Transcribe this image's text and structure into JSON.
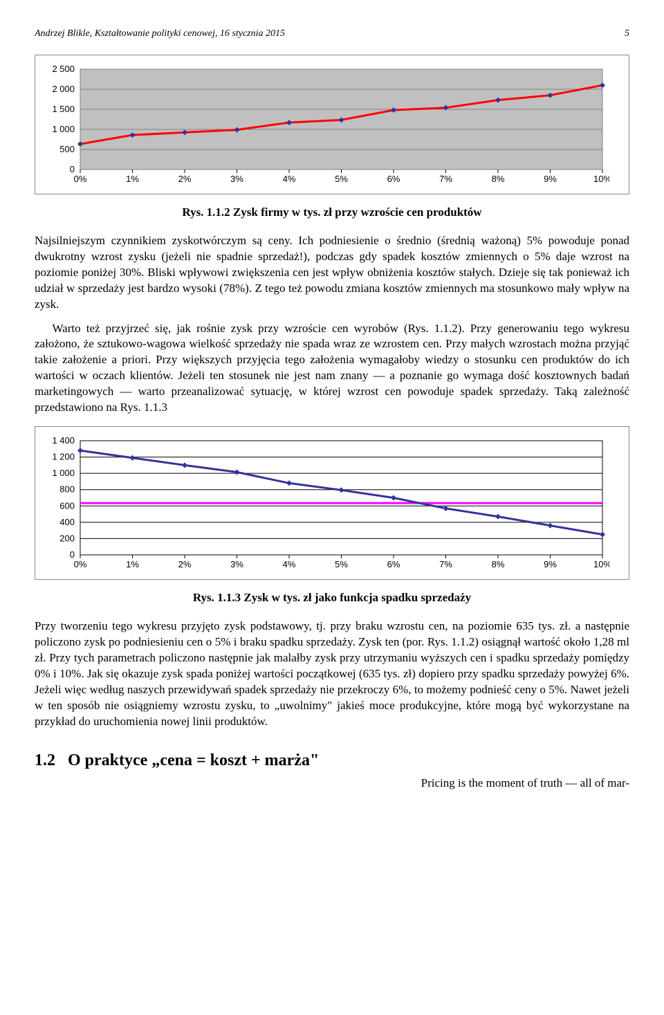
{
  "header": {
    "text": "Andrzej Blikle, Kształtowanie polityki cenowej, 16 stycznia 2015",
    "page": "5"
  },
  "chart1": {
    "type": "line",
    "background_color": "#c0c0c0",
    "plot_bg": "#c0c0c0",
    "grid_color": "#808080",
    "outer_border": "#808080",
    "line_color": "#ff0000",
    "marker_color": "#333399",
    "marker_size": 4,
    "line_width": 3,
    "x_labels": [
      "0%",
      "1%",
      "2%",
      "3%",
      "4%",
      "5%",
      "6%",
      "7%",
      "8%",
      "9%",
      "10%"
    ],
    "y_labels": [
      "0",
      "500",
      "1 000",
      "1 500",
      "2 000",
      "2 500"
    ],
    "ylim": [
      0,
      2500
    ],
    "ytick_step": 500,
    "values": [
      635,
      860,
      925,
      990,
      1170,
      1235,
      1480,
      1540,
      1730,
      1850,
      2100
    ]
  },
  "caption1": "Rys. 1.1.2 Zysk firmy w tys. zł przy wzroście cen produktów",
  "para1": "Najsilniejszym czynnikiem zyskotwórczym są ceny. Ich podniesienie o średnio (średnią ważoną) 5% powoduje ponad dwukrotny wzrost zysku (jeżeli nie spadnie sprzedaż!), podczas gdy spadek kosztów zmiennych o 5% daje wzrost na poziomie poniżej 30%. Bliski wpływowi zwiększenia cen jest wpływ obniżenia kosztów stałych. Dzieje się tak ponieważ ich udział w sprzedaży jest bardzo wysoki (78%). Z tego też powodu zmiana kosztów zmiennych ma stosunkowo mały wpływ na zysk.",
  "para2": "Warto też przyjrzeć się, jak rośnie zysk przy wzroście cen wyrobów (Rys. 1.1.2). Przy generowaniu tego wykresu założono, że sztukowo-wagowa wielkość sprzedaży nie spada wraz ze wzrostem cen. Przy małych wzrostach można przyjąć takie założenie a priori. Przy większych przyjęcia tego założenia wymagałoby wiedzy o stosunku cen produktów do ich wartości w oczach klientów. Jeżeli ten stosunek nie jest nam znany — a poznanie go wymaga dość kosztownych badań marketingowych — warto przeanalizować sytuację, w której wzrost cen powoduje spadek sprzedaży. Taką zależność przedstawiono na Rys. 1.1.3",
  "chart2": {
    "type": "line",
    "background_color": "#ffffff",
    "grid_color": "#000000",
    "line_color": "#333399",
    "hline_color": "#ff00ff",
    "hline_value": 635,
    "marker_color": "#333399",
    "marker_size": 4,
    "line_width": 3,
    "x_labels": [
      "0%",
      "1%",
      "2%",
      "3%",
      "4%",
      "5%",
      "6%",
      "7%",
      "8%",
      "9%",
      "10%"
    ],
    "y_labels": [
      "0",
      "200",
      "400",
      "600",
      "800",
      "1 000",
      "1 200",
      "1 400"
    ],
    "ylim": [
      0,
      1400
    ],
    "ytick_step": 200,
    "values": [
      1280,
      1190,
      1100,
      1015,
      880,
      795,
      700,
      570,
      470,
      360,
      250
    ]
  },
  "caption2": "Rys. 1.1.3 Zysk w tys. zł jako funkcja spadku sprzedaży",
  "para3": "Przy tworzeniu tego wykresu przyjęto zysk podstawowy, tj. przy braku wzrostu cen, na poziomie 635 tys. zł. a następnie policzono zysk po podniesieniu cen o 5% i braku spadku sprzedaży. Zysk ten (por. Rys. 1.1.2) osiągnął wartość około 1,28 ml zł. Przy tych parametrach policzono następnie jak malałby zysk przy utrzymaniu wyższych cen i spadku sprzedaży pomiędzy 0% i 10%. Jak się okazuje zysk spada poniżej wartości początkowej (635 tys. zł) dopiero przy spadku sprzedaży powyżej 6%. Jeżeli więc według naszych przewidywań spadek sprzedaży nie przekroczy 6%, to możemy podnieść ceny o 5%. Nawet jeżeli w ten sposób nie osiągniemy wzrostu zysku, to „uwolnimy\" jakieś moce produkcyjne, które mogą być wykorzystane na przykład do uruchomienia nowej linii produktów.",
  "section": {
    "num": "1.2",
    "title": "O praktyce „cena = koszt + marża\""
  },
  "quote": "Pricing is the moment of truth — all of mar-"
}
